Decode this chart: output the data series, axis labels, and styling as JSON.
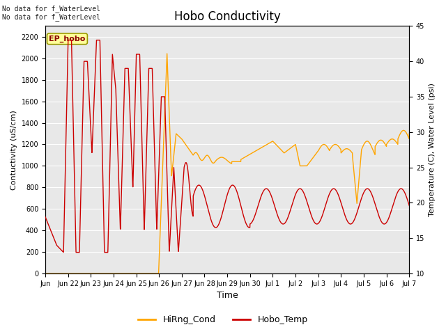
{
  "title": "Hobo Conductivity",
  "xlabel": "Time",
  "ylabel_left": "Contuctivity (uS/cm)",
  "ylabel_right": "Temperature (C), Water Level (psi)",
  "top_text_1": "No data for f_WaterLevel",
  "top_text_2": "No data for f_WaterLevel",
  "legend_box_text": "EP_hobo",
  "legend_entries": [
    "HiRng_Cond",
    "Hobo_Temp"
  ],
  "legend_colors": [
    "#FFA500",
    "#CC0000"
  ],
  "ylim_left": [
    0,
    2300
  ],
  "ylim_right": [
    10,
    45
  ],
  "yticks_left": [
    0,
    200,
    400,
    600,
    800,
    1000,
    1200,
    1400,
    1600,
    1800,
    2000,
    2200
  ],
  "yticks_right": [
    10,
    15,
    20,
    25,
    30,
    35,
    40,
    45
  ],
  "plot_bg_color": "#e8e8e8",
  "line_color_cond": "#FFA500",
  "line_color_temp": "#CC0000",
  "grid_color": "#ffffff",
  "xtick_labels": [
    "Jun",
    "Jun 22",
    "Jun 23",
    "Jun 24",
    "Jun 25",
    "Jun 26",
    "Jun 27",
    "Jun 28",
    "Jun 29",
    "Jun 30",
    "Jul 1",
    "Jul 2",
    "Jul 3",
    "Jul 4",
    "Jul 5",
    "Jul 6",
    "Jul 7"
  ],
  "figsize": [
    6.4,
    4.8
  ],
  "dpi": 100
}
